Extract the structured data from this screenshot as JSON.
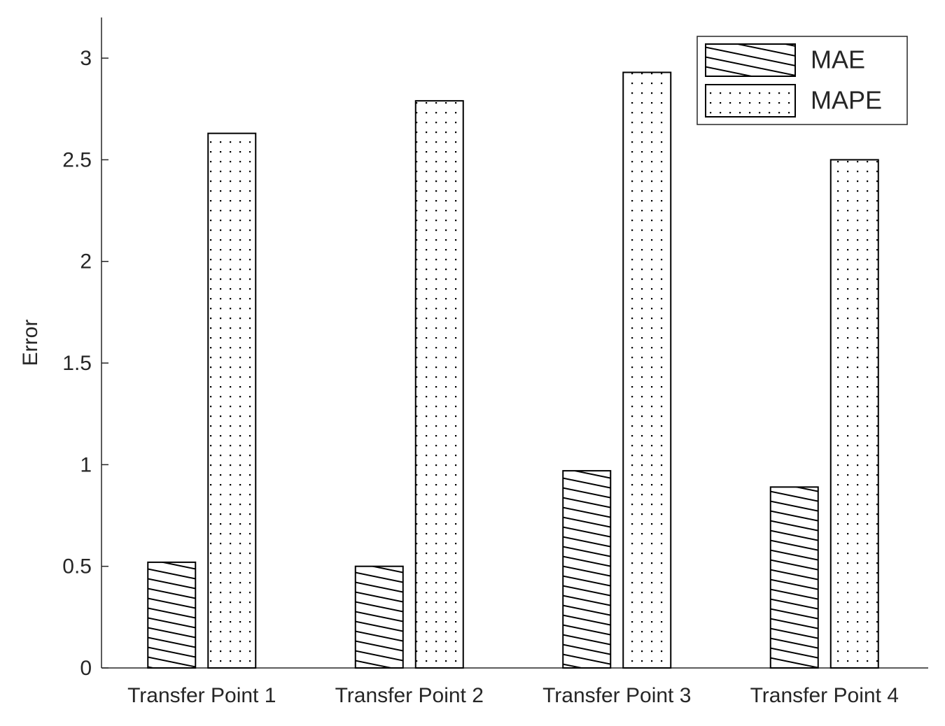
{
  "chart_data": {
    "type": "bar",
    "y_label": "Error",
    "categories": [
      "Transfer Point 1",
      "Transfer Point 2",
      "Transfer Point 3",
      "Transfer Point 4"
    ],
    "series": [
      {
        "name": "MAE",
        "color": "#ffffff",
        "pattern": "diagonal",
        "values": [
          0.52,
          0.5,
          0.97,
          0.89
        ]
      },
      {
        "name": "MAPE",
        "color": "#ffffff",
        "pattern": "dots",
        "values": [
          2.63,
          2.79,
          2.93,
          2.5
        ]
      }
    ],
    "ylim": [
      0,
      3.2
    ],
    "yticks": [
      0,
      0.5,
      1,
      1.5,
      2,
      2.5,
      3
    ],
    "grid": false,
    "legend": "top-right"
  }
}
